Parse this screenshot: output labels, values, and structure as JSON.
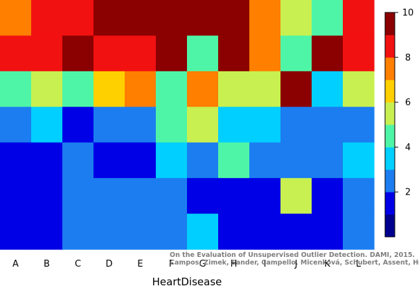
{
  "chart_data": {
    "type": "heatmap",
    "xlabel": "HeartDisease",
    "categories": [
      "A",
      "B",
      "C",
      "D",
      "E",
      "F",
      "G",
      "H",
      "I",
      "J",
      "K",
      "L"
    ],
    "rows": [
      [
        8,
        9,
        9,
        10,
        10,
        10,
        10,
        10,
        8,
        6,
        5,
        9
      ],
      [
        9,
        9,
        10,
        9,
        9,
        10,
        5,
        10,
        8,
        5,
        10,
        9
      ],
      [
        5,
        6,
        5,
        7,
        8,
        5,
        8,
        6,
        6,
        10,
        4,
        6
      ],
      [
        3,
        4,
        2,
        3,
        3,
        5,
        6,
        4,
        4,
        3,
        3,
        3
      ],
      [
        2,
        2,
        3,
        2,
        2,
        4,
        3,
        5,
        3,
        3,
        3,
        4
      ],
      [
        2,
        2,
        3,
        3,
        3,
        3,
        2,
        2,
        2,
        6,
        2,
        3
      ],
      [
        2,
        2,
        3,
        3,
        3,
        3,
        4,
        2,
        2,
        2,
        2,
        3
      ]
    ],
    "colorbar": {
      "ticks": [
        2,
        4,
        6,
        8,
        10
      ],
      "colors": [
        "#00008f",
        "#0000e6",
        "#1c7df0",
        "#00cfff",
        "#4ff5a6",
        "#c8f050",
        "#ffd000",
        "#ff7f00",
        "#f21111",
        "#8b0000"
      ]
    },
    "credit_lines": [
      "On the Evaluation of Unsupervised Outlier Detection. DAMI, 2015.",
      "Campos, Zimek, Sander, Campello, Micenková, Schubert, Assent, Houle"
    ]
  }
}
